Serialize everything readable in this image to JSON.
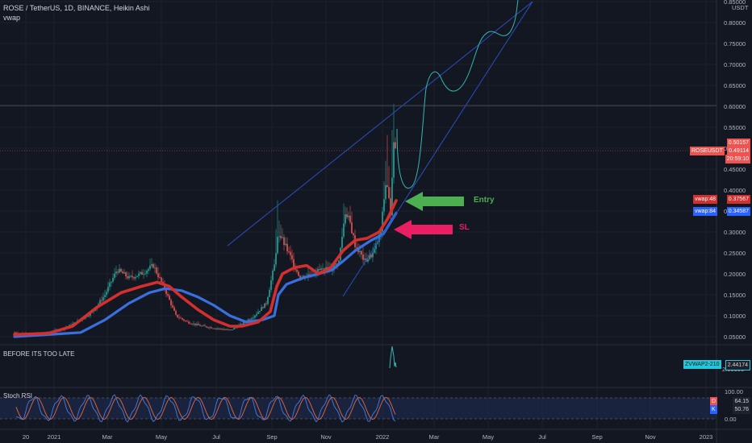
{
  "header": {
    "symbol_line": "ROSE / TetherUS, 1D, BINANCE, Heikin Ashi",
    "indicator": "vwap"
  },
  "price_axis": {
    "currency": "USDT",
    "ticks": [
      "0.85000",
      "0.80000",
      "0.75000",
      "0.70000",
      "0.65000",
      "0.60000",
      "0.55000",
      "0.50000",
      "0.45000",
      "0.40000",
      "0.35000",
      "0.30000",
      "0.25000",
      "0.20000",
      "0.15000",
      "0.10000",
      "0.05000"
    ],
    "last_price_top": "0.50157",
    "last_price": "0.49114",
    "countdown": "20:59:10",
    "symbol_tag": "ROSEUSDT",
    "vwap48_label": "vwap:48",
    "vwap48_value": "0.37567",
    "vwap84_label": "vwap:84",
    "vwap84_value": "0.34587"
  },
  "time_axis": {
    "ticks": [
      "20",
      "2021",
      "Mar",
      "May",
      "Jul",
      "Sep",
      "Nov",
      "2022",
      "Mar",
      "May",
      "Jul",
      "Sep",
      "Nov",
      "2023"
    ]
  },
  "annotations": {
    "entry": "Entry",
    "sl": "SL"
  },
  "panel2": {
    "title": "BEFORE ITS TOO LATE",
    "axis_tick": "2.00000",
    "tag_label": "ZVWAP2-210",
    "tag_value": "2.44174"
  },
  "panel3": {
    "title": "Stoch RSI",
    "axis_ticks": [
      "100.00",
      "0.00"
    ],
    "d_label": "D",
    "d_value": "64.15",
    "k_label": "K",
    "k_value": "50.76"
  },
  "colors": {
    "background": "#131722",
    "up": "#26a69a",
    "down": "#ef5350",
    "vwap48": "#e03030",
    "vwap84": "#3a6fe0",
    "trendline": "#2a4fc2",
    "projection": "#35b6b2",
    "entry_arrow": "#4caf50",
    "sl_arrow": "#e91e63"
  }
}
